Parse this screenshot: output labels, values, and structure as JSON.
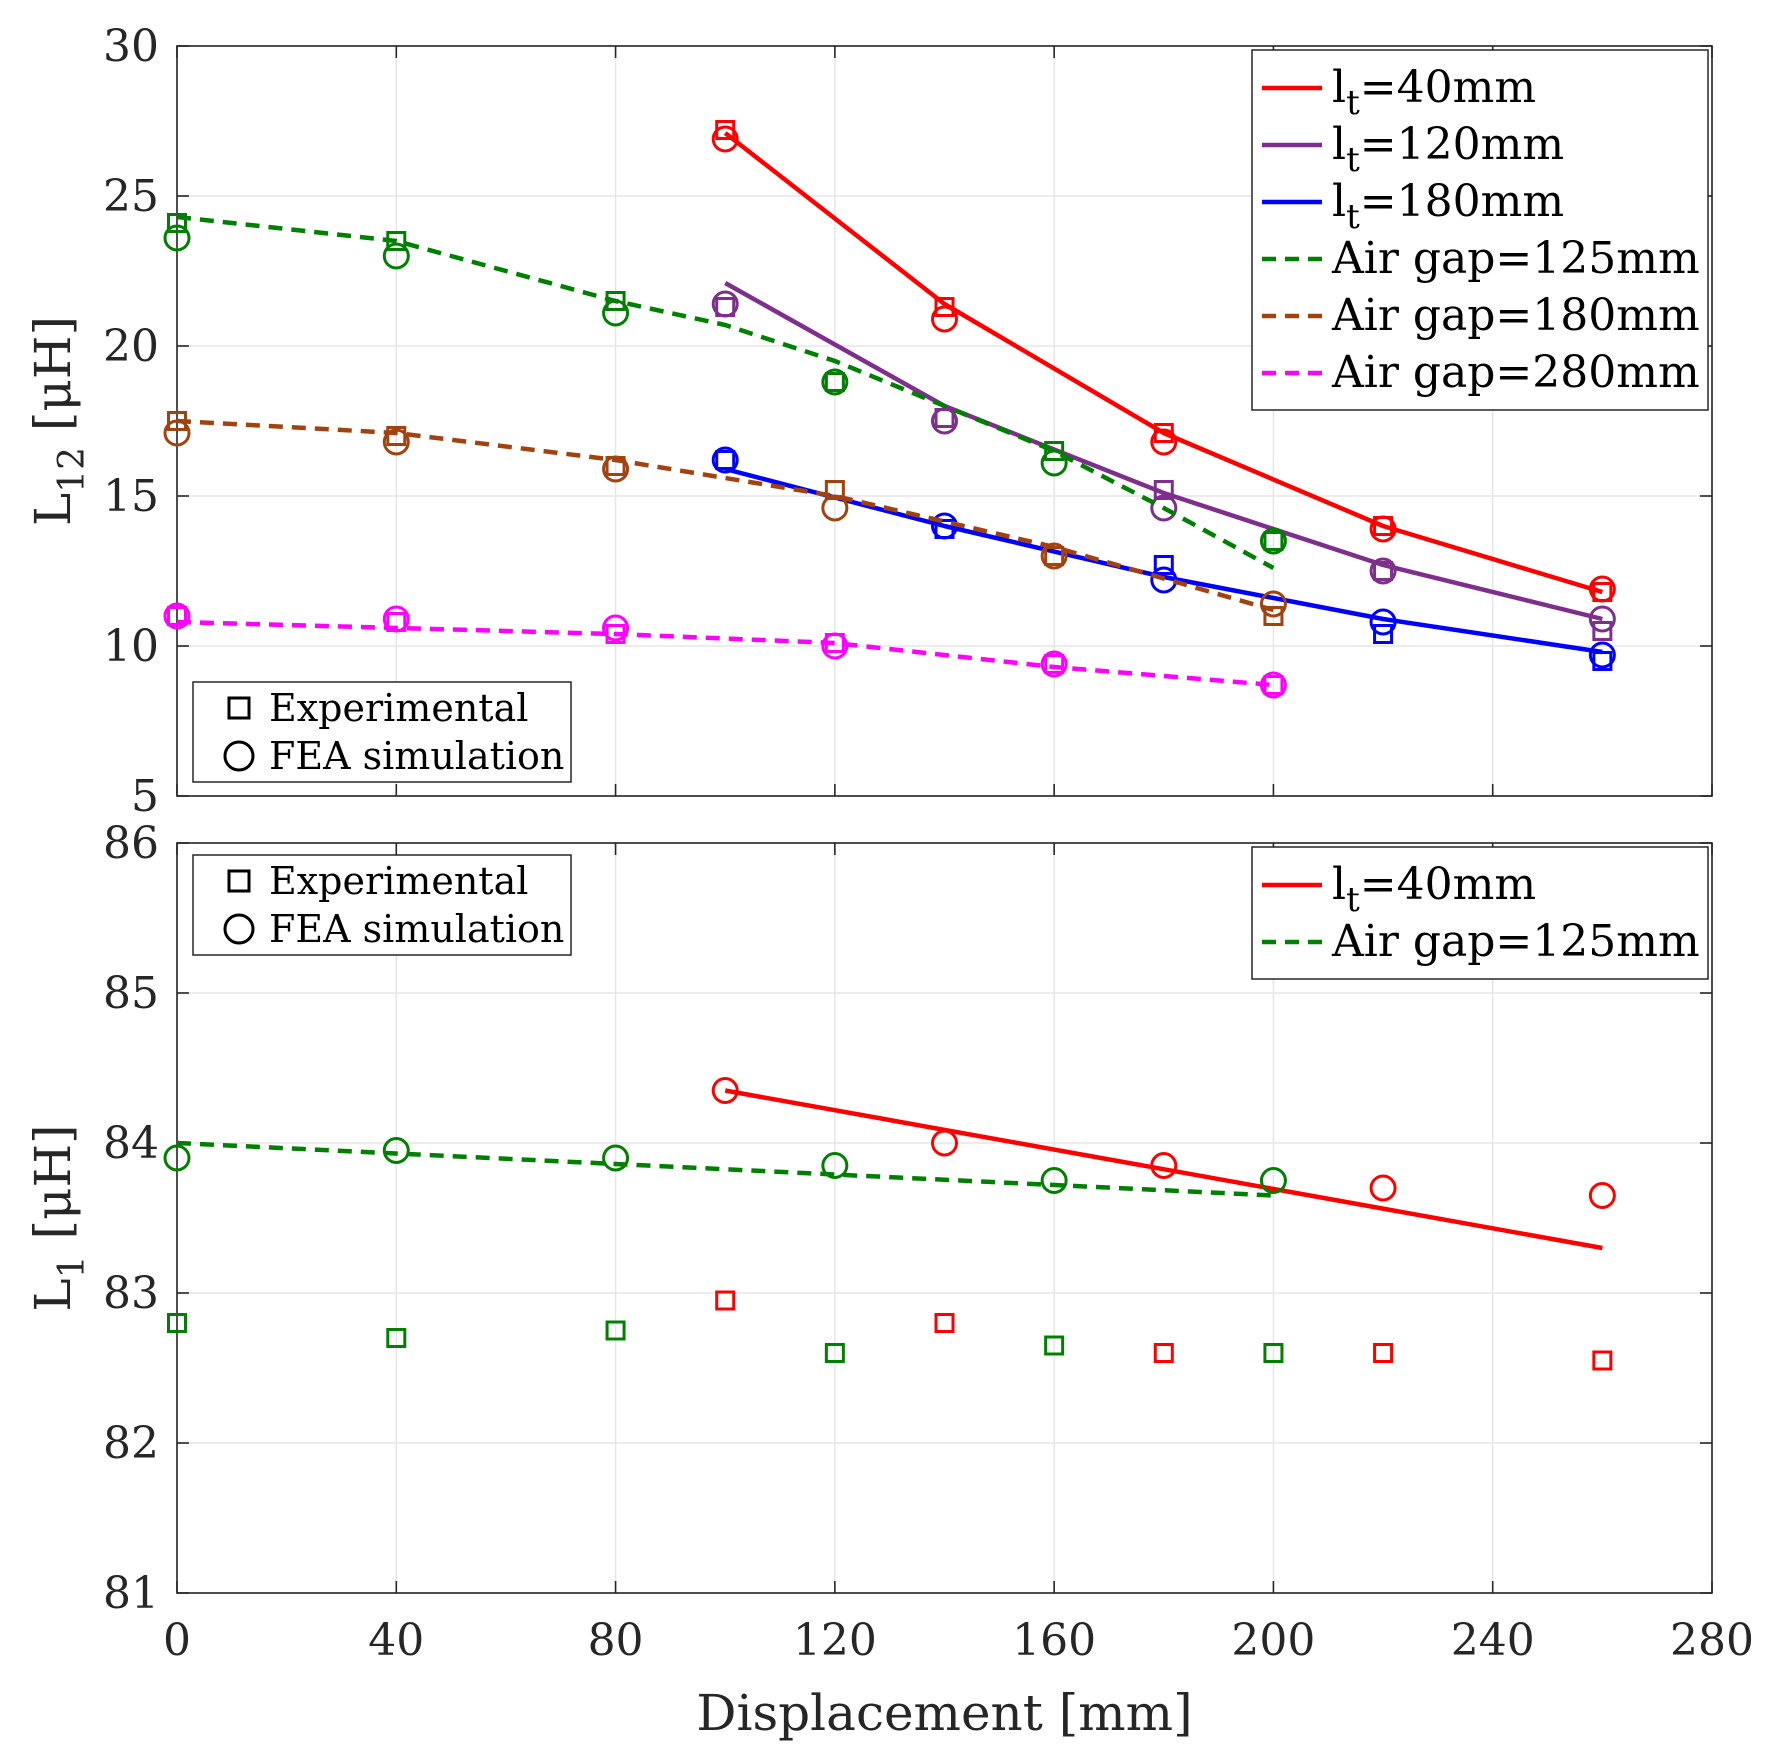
{
  "chart_data": [
    {
      "type": "line",
      "ylabel": "L",
      "ylabel_sub": "12",
      "ylabel_unit": " [μH]",
      "xlim": [
        0,
        280
      ],
      "ylim": [
        5,
        30
      ],
      "xticks": [
        "0",
        "40",
        "80",
        "120",
        "160",
        "200",
        "240",
        "280"
      ],
      "yticks": [
        "5",
        "10",
        "15",
        "20",
        "25",
        "30"
      ],
      "grid": true,
      "legend_position": "top-right",
      "marker_legend": {
        "position": "bottom-left",
        "square": "Experimental",
        "circle": "FEA simulation"
      },
      "series": [
        {
          "name": "l_t=40mm",
          "label_main": "l",
          "label_sub": "t",
          "label_rest": "=40mm",
          "color": "#ff0000",
          "dash": false,
          "x": [
            100,
            140,
            180,
            220,
            260
          ],
          "line_y": [
            27.1,
            21.4,
            17.1,
            14.0,
            11.8
          ],
          "exp_y": [
            27.2,
            21.3,
            17.1,
            14.0,
            11.8
          ],
          "fea_y": [
            26.9,
            20.9,
            16.8,
            13.9,
            11.9
          ]
        },
        {
          "name": "l_t=120mm",
          "label_main": "l",
          "label_sub": "t",
          "label_rest": "=120mm",
          "color": "#7e2f8e",
          "dash": false,
          "x": [
            100,
            140,
            180,
            220,
            260
          ],
          "line_y": [
            22.1,
            18.0,
            15.1,
            12.7,
            10.9
          ],
          "exp_y": [
            21.3,
            17.6,
            15.2,
            12.5,
            10.5
          ],
          "fea_y": [
            21.4,
            17.5,
            14.6,
            12.5,
            10.9
          ]
        },
        {
          "name": "l_t=180mm",
          "label_main": "l",
          "label_sub": "t",
          "label_rest": "=180mm",
          "color": "#0000ff",
          "dash": false,
          "x": [
            100,
            140,
            180,
            220,
            260
          ],
          "line_y": [
            15.9,
            14.0,
            12.3,
            10.9,
            9.8
          ],
          "exp_y": [
            16.2,
            13.9,
            12.7,
            10.4,
            9.5
          ],
          "fea_y": [
            16.2,
            14.0,
            12.2,
            10.8,
            9.7
          ]
        },
        {
          "name": "Air gap=125mm",
          "label_main": "Air gap=125mm",
          "color": "#008000",
          "dash": true,
          "x": [
            0,
            40,
            80,
            100,
            120,
            160,
            180,
            200
          ],
          "line_y": [
            24.3,
            23.5,
            21.5,
            20.7,
            19.5,
            16.5,
            14.6,
            12.6
          ],
          "exp_x": [
            0,
            40,
            80,
            120,
            160,
            200
          ],
          "exp_y": [
            24.1,
            23.5,
            21.5,
            18.8,
            16.5,
            13.5
          ],
          "fea_y": [
            23.6,
            23.0,
            21.1,
            18.8,
            16.1,
            13.5
          ]
        },
        {
          "name": "Air gap=180mm",
          "label_main": "Air gap=180mm",
          "color": "#a2420e",
          "dash": true,
          "x": [
            0,
            40,
            80,
            120,
            160,
            200
          ],
          "line_y": [
            17.5,
            17.1,
            16.2,
            15.0,
            13.3,
            11.2
          ],
          "exp_y": [
            17.5,
            17.0,
            16.0,
            15.2,
            13.0,
            11.0
          ],
          "fea_y": [
            17.1,
            16.8,
            15.9,
            14.6,
            13.0,
            11.4
          ]
        },
        {
          "name": "Air gap=280mm",
          "label_main": "Air gap=280mm",
          "color": "#ff00ff",
          "dash": true,
          "x": [
            0,
            40,
            80,
            120,
            160,
            200
          ],
          "line_y": [
            10.8,
            10.6,
            10.4,
            10.1,
            9.3,
            8.7
          ],
          "exp_y": [
            11.0,
            10.8,
            10.4,
            10.1,
            9.4,
            8.7
          ],
          "fea_y": [
            11.0,
            10.9,
            10.6,
            10.0,
            9.4,
            8.7
          ]
        }
      ]
    },
    {
      "type": "line",
      "xlabel": "Displacement [mm]",
      "ylabel": "L",
      "ylabel_sub": "1",
      "ylabel_unit": " [μH]",
      "xlim": [
        0,
        280
      ],
      "ylim": [
        81,
        86
      ],
      "xticks": [
        "0",
        "40",
        "80",
        "120",
        "160",
        "200",
        "240",
        "280"
      ],
      "yticks": [
        "81",
        "82",
        "83",
        "84",
        "85",
        "86"
      ],
      "grid": true,
      "legend_position": "top-right",
      "marker_legend": {
        "position": "top-left",
        "square": "Experimental",
        "circle": "FEA simulation"
      },
      "series": [
        {
          "name": "l_t=40mm",
          "label_main": "l",
          "label_sub": "t",
          "label_rest": "=40mm",
          "color": "#ff0000",
          "dash": false,
          "x": [
            100,
            260
          ],
          "line_y": [
            84.35,
            83.3
          ],
          "exp_x": [
            100,
            140,
            180,
            220,
            260
          ],
          "exp_y": [
            82.95,
            82.8,
            82.6,
            82.6,
            82.55
          ],
          "fea_x": [
            100,
            140,
            180,
            220,
            260
          ],
          "fea_y": [
            84.35,
            84.0,
            83.85,
            83.7,
            83.65
          ]
        },
        {
          "name": "Air gap=125mm",
          "label_main": "Air gap=125mm",
          "color": "#008000",
          "dash": true,
          "x": [
            0,
            200
          ],
          "line_y": [
            84.0,
            83.65
          ],
          "exp_x": [
            0,
            40,
            80,
            120,
            160,
            200
          ],
          "exp_y": [
            82.8,
            82.7,
            82.75,
            82.6,
            82.65,
            82.6
          ],
          "fea_x": [
            0,
            40,
            80,
            120,
            160,
            200
          ],
          "fea_y": [
            83.9,
            83.95,
            83.9,
            83.85,
            83.75,
            83.75
          ]
        }
      ]
    }
  ]
}
